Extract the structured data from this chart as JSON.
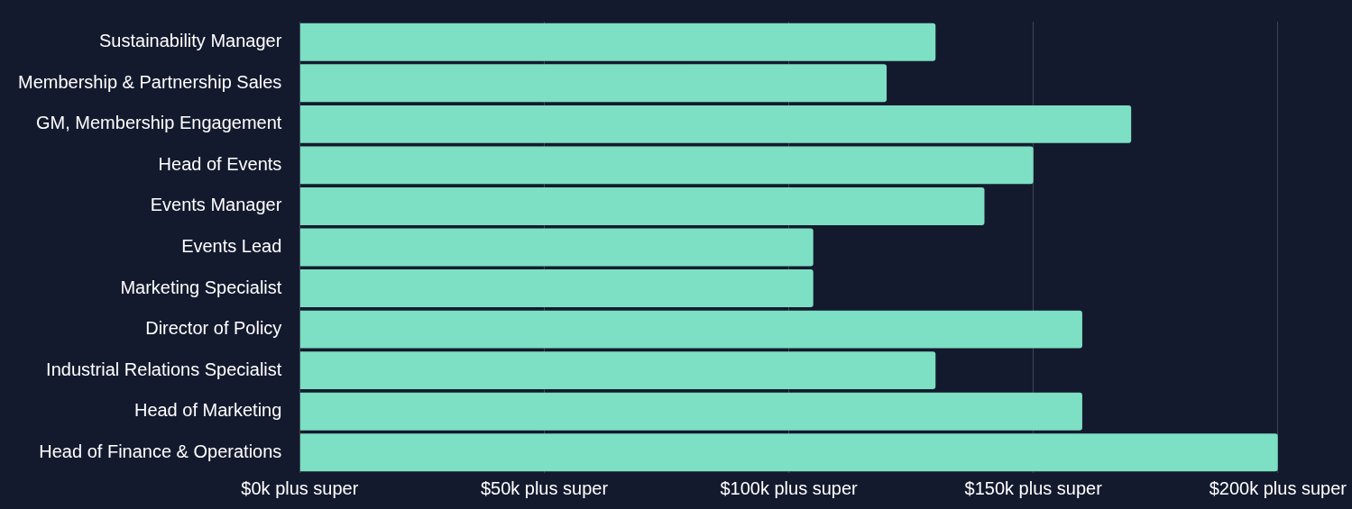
{
  "chart_data": {
    "type": "bar",
    "orientation": "horizontal",
    "categories": [
      "Sustainability Manager",
      "Membership & Partnership Sales",
      "GM, Membership Engagement",
      "Head of Events",
      "Events Manager",
      "Events Lead",
      "Marketing Specialist",
      "Director of Policy",
      "Industrial Relations Specialist",
      "Head of Marketing",
      "Head of Finance & Operations"
    ],
    "values": [
      130,
      120,
      170,
      150,
      140,
      105,
      105,
      160,
      130,
      160,
      200
    ],
    "color": "#7ddfc3",
    "xlim": [
      0,
      200
    ],
    "xticks": [
      {
        "value": 0,
        "label": "$0k plus super"
      },
      {
        "value": 50,
        "label": "$50k plus super"
      },
      {
        "value": 100,
        "label": "$100k plus super"
      },
      {
        "value": 150,
        "label": "$150k plus super"
      },
      {
        "value": 200,
        "label": "$200k plus super"
      }
    ],
    "grid": "x",
    "legend": false
  }
}
